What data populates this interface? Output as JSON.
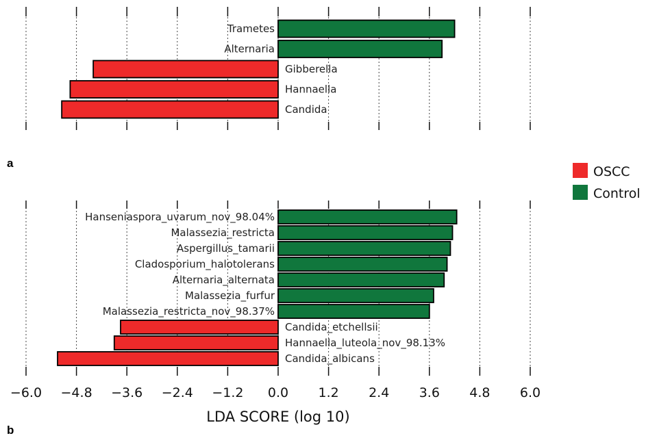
{
  "colors": {
    "OSCC": "#ee2a2a",
    "Control": "#10773d"
  },
  "legend": [
    {
      "label": "OSCC",
      "color": "#ee2a2a"
    },
    {
      "label": "Control",
      "color": "#10773d"
    }
  ],
  "chart_data": [
    {
      "type": "bar",
      "orientation": "horizontal",
      "panel_label": "a",
      "xlim": [
        -6.0,
        6.0
      ],
      "grid": true,
      "categories": [
        "Trametes",
        "Alternaria",
        "Gibberella",
        "Hannaella",
        "Candida"
      ],
      "series": [
        {
          "name": "Control",
          "values": [
            4.2,
            3.9,
            null,
            null,
            null
          ]
        },
        {
          "name": "OSCC",
          "values": [
            null,
            null,
            -4.4,
            -4.95,
            -5.15
          ]
        }
      ]
    },
    {
      "type": "bar",
      "orientation": "horizontal",
      "panel_label": "b",
      "xlim": [
        -6.0,
        6.0
      ],
      "grid": true,
      "xlabel": "LDA SCORE (log 10)",
      "xticks": [
        "−6.0",
        "−4.8",
        "−3.6",
        "−2.4",
        "−1.2",
        "0.0",
        "1.2",
        "2.4",
        "3.6",
        "4.8",
        "6.0"
      ],
      "categories": [
        "Hanseniaspora_uvarum_nov_98.04%",
        "Malassezia_restricta",
        "Aspergillus_tamarii",
        "Cladosporium_halotolerans",
        "Alternaria_alternata",
        "Malassezia_furfur",
        "Malassezia_restricta_nov_98.37%",
        "Candida_etchellsii",
        "Hannaella_luteola_nov_98.13%",
        "Candida_albicans"
      ],
      "series": [
        {
          "name": "Control",
          "values": [
            4.25,
            4.15,
            4.1,
            4.02,
            3.95,
            3.7,
            3.6,
            null,
            null,
            null
          ]
        },
        {
          "name": "OSCC",
          "values": [
            null,
            null,
            null,
            null,
            null,
            null,
            null,
            -3.75,
            -3.9,
            -5.25
          ]
        }
      ]
    }
  ]
}
